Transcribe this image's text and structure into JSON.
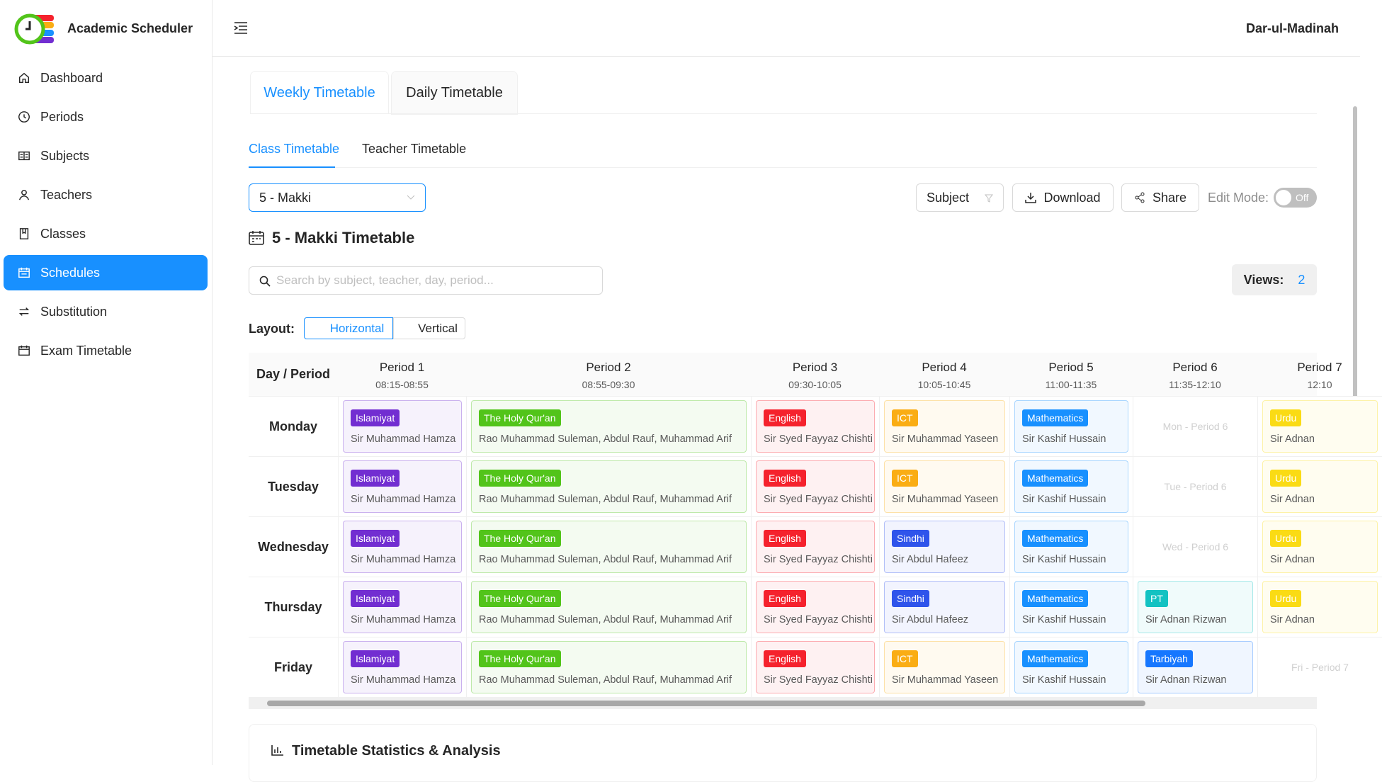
{
  "brand": "Academic Scheduler",
  "school": "Dar-ul-Madinah",
  "nav": {
    "items": [
      "Dashboard",
      "Periods",
      "Subjects",
      "Teachers",
      "Classes",
      "Schedules",
      "Substitution",
      "Exam Timetable"
    ],
    "active": 5
  },
  "tabs": [
    "Weekly Timetable",
    "Daily Timetable"
  ],
  "subtabs": [
    "Class Timetable",
    "Teacher Timetable"
  ],
  "class_select": "5 - Makki",
  "toolbar": {
    "filter": "Subject",
    "download": "Download",
    "share": "Share",
    "edit_label": "Edit Mode:",
    "edit_state": "Off"
  },
  "timetable_title": "5 - Makki Timetable",
  "search_placeholder": "Search by subject, teacher, day, period...",
  "views": {
    "label": "Views:",
    "count": "2"
  },
  "layout": {
    "label": "Layout:",
    "options": [
      "Horizontal",
      "Vertical"
    ],
    "active": 0
  },
  "table": {
    "corner": "Day / Period",
    "periods": [
      {
        "name": "Period 1",
        "time": "08:15-08:55"
      },
      {
        "name": "Period 2",
        "time": "08:55-09:30"
      },
      {
        "name": "Period 3",
        "time": "09:30-10:05"
      },
      {
        "name": "Period 4",
        "time": "10:05-10:45"
      },
      {
        "name": "Period 5",
        "time": "11:00-11:35"
      },
      {
        "name": "Period 6",
        "time": "11:35-12:10"
      },
      {
        "name": "Period 7",
        "time": "12:10"
      }
    ],
    "rows": [
      {
        "day": "Monday",
        "cells": [
          {
            "subject": "Islamiyat",
            "teacher": "Sir Muhammad Hamza",
            "color": "#722ed1"
          },
          {
            "subject": "The Holy Qur'an",
            "teacher": "Rao Muhammad Suleman, Abdul Rauf, Muhammad Arif",
            "color": "#52c41a"
          },
          {
            "subject": "English",
            "teacher": "Sir Syed Fayyaz Chishti",
            "color": "#f5222d"
          },
          {
            "subject": "ICT",
            "teacher": "Sir Muhammad Yaseen",
            "color": "#faad14"
          },
          {
            "subject": "Mathematics",
            "teacher": "Sir Kashif Hussain",
            "color": "#1890ff"
          },
          {
            "empty": "Mon - Period 6"
          },
          {
            "subject": "Urdu",
            "teacher": "Sir Adnan",
            "color": "#fadb14"
          }
        ]
      },
      {
        "day": "Tuesday",
        "cells": [
          {
            "subject": "Islamiyat",
            "teacher": "Sir Muhammad Hamza",
            "color": "#722ed1"
          },
          {
            "subject": "The Holy Qur'an",
            "teacher": "Rao Muhammad Suleman, Abdul Rauf, Muhammad Arif",
            "color": "#52c41a"
          },
          {
            "subject": "English",
            "teacher": "Sir Syed Fayyaz Chishti",
            "color": "#f5222d"
          },
          {
            "subject": "ICT",
            "teacher": "Sir Muhammad Yaseen",
            "color": "#faad14"
          },
          {
            "subject": "Mathematics",
            "teacher": "Sir Kashif Hussain",
            "color": "#1890ff"
          },
          {
            "empty": "Tue - Period 6"
          },
          {
            "subject": "Urdu",
            "teacher": "Sir Adnan",
            "color": "#fadb14"
          }
        ]
      },
      {
        "day": "Wednesday",
        "cells": [
          {
            "subject": "Islamiyat",
            "teacher": "Sir Muhammad Hamza",
            "color": "#722ed1"
          },
          {
            "subject": "The Holy Qur'an",
            "teacher": "Rao Muhammad Suleman, Abdul Rauf, Muhammad Arif",
            "color": "#52c41a"
          },
          {
            "subject": "English",
            "teacher": "Sir Syed Fayyaz Chishti",
            "color": "#f5222d"
          },
          {
            "subject": "Sindhi",
            "teacher": "Sir Abdul Hafeez",
            "color": "#2f54eb"
          },
          {
            "subject": "Mathematics",
            "teacher": "Sir Kashif Hussain",
            "color": "#1890ff"
          },
          {
            "empty": "Wed - Period 6"
          },
          {
            "subject": "Urdu",
            "teacher": "Sir Adnan",
            "color": "#fadb14"
          }
        ]
      },
      {
        "day": "Thursday",
        "cells": [
          {
            "subject": "Islamiyat",
            "teacher": "Sir Muhammad Hamza",
            "color": "#722ed1"
          },
          {
            "subject": "The Holy Qur'an",
            "teacher": "Rao Muhammad Suleman, Abdul Rauf, Muhammad Arif",
            "color": "#52c41a"
          },
          {
            "subject": "English",
            "teacher": "Sir Syed Fayyaz Chishti",
            "color": "#f5222d"
          },
          {
            "subject": "Sindhi",
            "teacher": "Sir Abdul Hafeez",
            "color": "#2f54eb"
          },
          {
            "subject": "Mathematics",
            "teacher": "Sir Kashif Hussain",
            "color": "#1890ff"
          },
          {
            "subject": "PT",
            "teacher": "Sir Adnan Rizwan",
            "color": "#13c2c2"
          },
          {
            "subject": "Urdu",
            "teacher": "Sir Adnan",
            "color": "#fadb14"
          }
        ]
      },
      {
        "day": "Friday",
        "cells": [
          {
            "subject": "Islamiyat",
            "teacher": "Sir Muhammad Hamza",
            "color": "#722ed1"
          },
          {
            "subject": "The Holy Qur'an",
            "teacher": "Rao Muhammad Suleman, Abdul Rauf, Muhammad Arif",
            "color": "#52c41a"
          },
          {
            "subject": "English",
            "teacher": "Sir Syed Fayyaz Chishti",
            "color": "#f5222d"
          },
          {
            "subject": "ICT",
            "teacher": "Sir Muhammad Yaseen",
            "color": "#faad14"
          },
          {
            "subject": "Mathematics",
            "teacher": "Sir Kashif Hussain",
            "color": "#1890ff"
          },
          {
            "subject": "Tarbiyah",
            "teacher": "Sir Adnan Rizwan",
            "color": "#1677ff"
          },
          {
            "empty": "Fri - Period 7"
          }
        ]
      }
    ]
  },
  "stats_title": "Timetable Statistics & Analysis"
}
